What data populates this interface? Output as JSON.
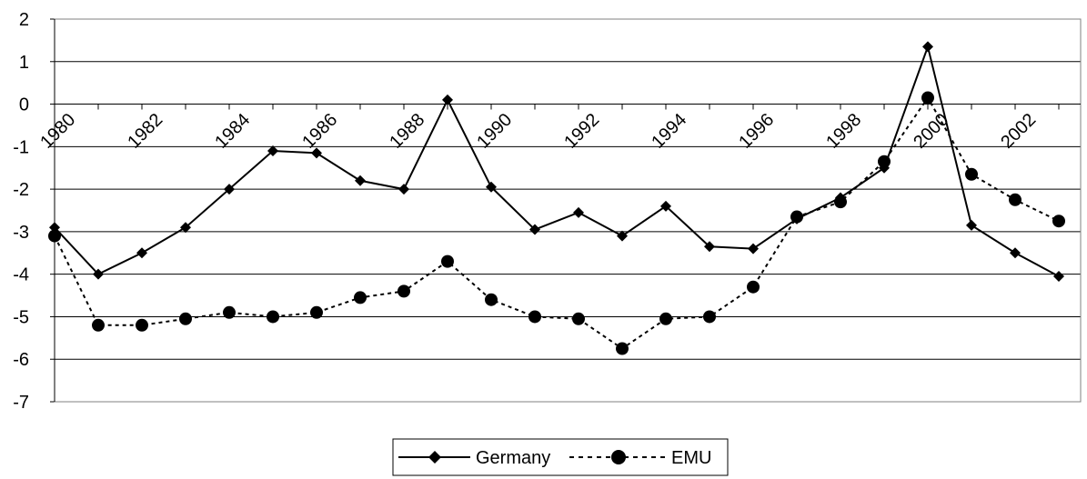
{
  "chart_data": {
    "type": "line",
    "title": "",
    "xlabel": "",
    "ylabel": "",
    "x": [
      1980,
      1981,
      1982,
      1983,
      1984,
      1985,
      1986,
      1987,
      1988,
      1989,
      1990,
      1991,
      1992,
      1993,
      1994,
      1995,
      1996,
      1997,
      1998,
      1999,
      2000,
      2001,
      2002,
      2003
    ],
    "xlim": [
      1980,
      2003.5
    ],
    "ylim": [
      -7,
      2
    ],
    "y_ticks": [
      2,
      1,
      0,
      -1,
      -2,
      -3,
      -4,
      -5,
      -6,
      -7
    ],
    "x_tick_labels": [
      "1980",
      "1982",
      "1984",
      "1986",
      "1988",
      "1990",
      "1992",
      "1994",
      "1996",
      "1998",
      "2000",
      "2002"
    ],
    "x_tick_values": [
      1980,
      1982,
      1984,
      1986,
      1988,
      1990,
      1992,
      1994,
      1996,
      1998,
      2000,
      2002
    ],
    "grid": "horizontal",
    "legend_position": "bottom-center",
    "series": [
      {
        "name": "Germany",
        "color": "#000000",
        "line_style": "solid",
        "marker": "diamond",
        "values": [
          -2.9,
          -4.0,
          -3.5,
          -2.9,
          -2.0,
          -1.1,
          -1.15,
          -1.8,
          -2.0,
          0.1,
          -1.95,
          -2.95,
          -2.55,
          -3.1,
          -2.4,
          -3.35,
          -3.4,
          -2.7,
          -2.2,
          -1.5,
          1.35,
          -2.85,
          -3.5,
          -4.05
        ]
      },
      {
        "name": "EMU",
        "color": "#000000",
        "line_style": "dotted",
        "marker": "circle",
        "values": [
          -3.1,
          -5.2,
          -5.2,
          -5.05,
          -4.9,
          -5.0,
          -4.9,
          -4.55,
          -4.4,
          -3.7,
          -4.6,
          -5.0,
          -5.05,
          -5.75,
          -5.05,
          -5.0,
          -4.3,
          -2.65,
          -2.3,
          -1.35,
          0.15,
          -1.65,
          -2.25,
          -2.75
        ]
      }
    ]
  }
}
